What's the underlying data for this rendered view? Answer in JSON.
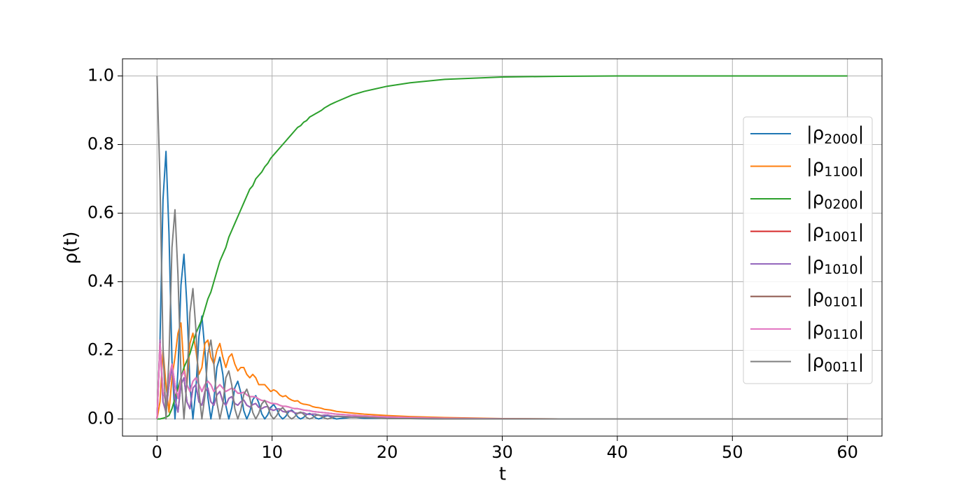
{
  "chart_data": {
    "type": "line",
    "xlabel": "t",
    "ylabel": "ρ(t)",
    "xlim": [
      -3,
      63
    ],
    "ylim": [
      -0.05,
      1.05
    ],
    "xticks": [
      0,
      10,
      20,
      30,
      40,
      50,
      60
    ],
    "yticks": [
      {
        "value": 0,
        "label": "0.0"
      },
      {
        "value": 0.2,
        "label": "0.2"
      },
      {
        "value": 0.4,
        "label": "0.4"
      },
      {
        "value": 0.6,
        "label": "0.6"
      },
      {
        "value": 0.8,
        "label": "0.8"
      },
      {
        "value": 1,
        "label": "1.0"
      }
    ],
    "grid": true,
    "legend": "right",
    "x": [
      0,
      0.26,
      0.52,
      0.78,
      1.04,
      1.3,
      1.56,
      1.82,
      2.08,
      2.34,
      2.6,
      2.86,
      3.12,
      3.38,
      3.64,
      3.9,
      4.16,
      4.42,
      4.68,
      4.94,
      5.2,
      5.46,
      5.72,
      5.98,
      6.24,
      6.5,
      6.76,
      7.02,
      7.28,
      7.54,
      7.8,
      8.06,
      8.32,
      8.58,
      8.84,
      9.1,
      9.36,
      9.62,
      9.88,
      10.14,
      10.4,
      10.66,
      10.92,
      11.18,
      11.44,
      11.7,
      11.96,
      12.22,
      12.48,
      12.74,
      13,
      13.26,
      13.52,
      13.78,
      14.04,
      14.3,
      14.56,
      14.82,
      15.08,
      15.34,
      15.6,
      17,
      18,
      20,
      22,
      25,
      30,
      35,
      40,
      50,
      60
    ],
    "series": [
      {
        "name": "|ρ2000|",
        "color": "#1f77b4",
        "values": [
          0,
          0.23,
          0.64,
          0.78,
          0.54,
          0.17,
          0,
          0.14,
          0.39,
          0.48,
          0.33,
          0.1,
          0,
          0.087,
          0.24,
          0.3,
          0.2,
          0.063,
          0,
          0.054,
          0.15,
          0.18,
          0.13,
          0.039,
          0,
          0.033,
          0.091,
          0.11,
          0.077,
          0.024,
          0,
          0.02,
          0.056,
          0.068,
          0.047,
          0.015,
          0,
          0.012,
          0.034,
          0.042,
          0.029,
          0.009,
          0,
          0.0075,
          0.021,
          0.026,
          0.018,
          0.0055,
          0,
          0.0045,
          0.013,
          0.016,
          0.011,
          0.0033,
          0,
          0.0028,
          0.0075,
          0.0095,
          0.0066,
          0.002,
          0,
          0.005,
          0.002,
          0.002,
          0.001,
          0,
          0,
          0,
          0,
          0,
          0
        ]
      },
      {
        "name": "|ρ1100|",
        "color": "#ff7f0e",
        "values": [
          0,
          0.05,
          0.2,
          0.1,
          0.02,
          0.12,
          0.18,
          0.25,
          0.28,
          0.15,
          0.1,
          0.22,
          0.25,
          0.2,
          0.13,
          0.15,
          0.22,
          0.23,
          0.18,
          0.16,
          0.2,
          0.22,
          0.18,
          0.15,
          0.18,
          0.19,
          0.16,
          0.14,
          0.15,
          0.15,
          0.13,
          0.12,
          0.13,
          0.12,
          0.1,
          0.1,
          0.1,
          0.09,
          0.08,
          0.085,
          0.08,
          0.07,
          0.065,
          0.068,
          0.06,
          0.055,
          0.052,
          0.053,
          0.046,
          0.043,
          0.042,
          0.04,
          0.036,
          0.034,
          0.033,
          0.031,
          0.028,
          0.027,
          0.026,
          0.024,
          0.022,
          0.017,
          0.014,
          0.01,
          0.007,
          0.004,
          0.001,
          0,
          0,
          0,
          0
        ]
      },
      {
        "name": "|ρ0200|",
        "color": "#2ca02c",
        "values": [
          0,
          0,
          0.002,
          0.005,
          0.01,
          0.03,
          0.06,
          0.09,
          0.12,
          0.15,
          0.17,
          0.19,
          0.22,
          0.25,
          0.27,
          0.29,
          0.32,
          0.35,
          0.37,
          0.4,
          0.43,
          0.46,
          0.48,
          0.5,
          0.53,
          0.55,
          0.57,
          0.59,
          0.61,
          0.63,
          0.65,
          0.67,
          0.68,
          0.7,
          0.71,
          0.72,
          0.735,
          0.745,
          0.76,
          0.77,
          0.78,
          0.79,
          0.8,
          0.81,
          0.82,
          0.83,
          0.84,
          0.85,
          0.855,
          0.865,
          0.87,
          0.88,
          0.885,
          0.89,
          0.895,
          0.9,
          0.907,
          0.912,
          0.917,
          0.921,
          0.925,
          0.945,
          0.955,
          0.97,
          0.98,
          0.99,
          0.997,
          0.999,
          1,
          1,
          1
        ]
      },
      {
        "name": "|ρ1001|",
        "color": "#d62728",
        "values": [
          0,
          0.23,
          0.05,
          0.02,
          0.1,
          0.15,
          0.06,
          0.02,
          0.1,
          0.12,
          0.05,
          0.03,
          0.09,
          0.1,
          0.05,
          0.04,
          0.08,
          0.09,
          0.05,
          0.04,
          0.07,
          0.08,
          0.05,
          0.04,
          0.06,
          0.065,
          0.045,
          0.04,
          0.05,
          0.055,
          0.04,
          0.035,
          0.042,
          0.045,
          0.034,
          0.03,
          0.035,
          0.036,
          0.028,
          0.025,
          0.029,
          0.029,
          0.022,
          0.02,
          0.023,
          0.023,
          0.018,
          0.016,
          0.018,
          0.018,
          0.014,
          0.013,
          0.014,
          0.014,
          0.011,
          0.01,
          0.011,
          0.011,
          0.009,
          0.008,
          0.008,
          0.006,
          0.005,
          0.003,
          0.002,
          0.001,
          0,
          0,
          0,
          0,
          0
        ]
      },
      {
        "name": "|ρ1010|",
        "color": "#9467bd",
        "values": [
          0,
          0.23,
          0.05,
          0.02,
          0.1,
          0.15,
          0.06,
          0.02,
          0.1,
          0.12,
          0.05,
          0.03,
          0.09,
          0.1,
          0.05,
          0.04,
          0.08,
          0.09,
          0.05,
          0.04,
          0.07,
          0.08,
          0.05,
          0.04,
          0.06,
          0.065,
          0.045,
          0.04,
          0.05,
          0.055,
          0.04,
          0.035,
          0.042,
          0.045,
          0.034,
          0.03,
          0.035,
          0.036,
          0.028,
          0.025,
          0.029,
          0.029,
          0.022,
          0.02,
          0.023,
          0.023,
          0.018,
          0.016,
          0.018,
          0.018,
          0.014,
          0.013,
          0.014,
          0.014,
          0.011,
          0.01,
          0.011,
          0.011,
          0.009,
          0.008,
          0.008,
          0.006,
          0.005,
          0.003,
          0.002,
          0.001,
          0,
          0,
          0,
          0,
          0
        ]
      },
      {
        "name": "|ρ0101|",
        "color": "#8c564b",
        "values": [
          0,
          0.22,
          0.08,
          0.05,
          0.12,
          0.16,
          0.1,
          0.06,
          0.12,
          0.14,
          0.1,
          0.08,
          0.11,
          0.12,
          0.1,
          0.08,
          0.1,
          0.11,
          0.1,
          0.08,
          0.09,
          0.1,
          0.09,
          0.08,
          0.085,
          0.09,
          0.085,
          0.075,
          0.075,
          0.078,
          0.07,
          0.065,
          0.065,
          0.064,
          0.058,
          0.054,
          0.053,
          0.05,
          0.046,
          0.045,
          0.044,
          0.04,
          0.037,
          0.037,
          0.035,
          0.032,
          0.03,
          0.03,
          0.028,
          0.026,
          0.025,
          0.024,
          0.022,
          0.021,
          0.02,
          0.019,
          0.018,
          0.017,
          0.016,
          0.015,
          0.014,
          0.011,
          0.009,
          0.006,
          0.004,
          0.002,
          0.0005,
          0,
          0,
          0,
          0
        ]
      },
      {
        "name": "|ρ0110|",
        "color": "#e377c2",
        "values": [
          0,
          0.22,
          0.08,
          0.05,
          0.12,
          0.16,
          0.1,
          0.06,
          0.12,
          0.14,
          0.1,
          0.08,
          0.11,
          0.12,
          0.1,
          0.08,
          0.1,
          0.11,
          0.1,
          0.08,
          0.09,
          0.1,
          0.09,
          0.08,
          0.085,
          0.09,
          0.085,
          0.075,
          0.075,
          0.078,
          0.07,
          0.065,
          0.065,
          0.064,
          0.058,
          0.054,
          0.053,
          0.05,
          0.046,
          0.045,
          0.044,
          0.04,
          0.037,
          0.037,
          0.035,
          0.032,
          0.03,
          0.03,
          0.028,
          0.026,
          0.025,
          0.024,
          0.022,
          0.021,
          0.02,
          0.019,
          0.018,
          0.017,
          0.016,
          0.015,
          0.014,
          0.011,
          0.009,
          0.006,
          0.004,
          0.002,
          0.0005,
          0,
          0,
          0,
          0
        ]
      },
      {
        "name": "|ρ0011|",
        "color": "#7f7f7f",
        "values": [
          1,
          0.69,
          0.21,
          0,
          0.18,
          0.5,
          0.61,
          0.42,
          0.13,
          0,
          0.11,
          0.31,
          0.38,
          0.26,
          0.08,
          0,
          0.068,
          0.19,
          0.23,
          0.16,
          0.049,
          0,
          0.042,
          0.12,
          0.14,
          0.098,
          0.03,
          0,
          0.026,
          0.071,
          0.087,
          0.061,
          0.019,
          0,
          0.016,
          0.044,
          0.054,
          0.037,
          0.011,
          0,
          0.01,
          0.027,
          0.033,
          0.023,
          0.007,
          0,
          0.006,
          0.017,
          0.02,
          0.014,
          0.004,
          0,
          0.0035,
          0.01,
          0.012,
          0.008,
          0.0025,
          0,
          0.002,
          0.006,
          0.0075,
          0.004,
          0.005,
          0.001,
          0.001,
          0,
          0,
          0,
          0,
          0,
          0
        ]
      }
    ]
  }
}
